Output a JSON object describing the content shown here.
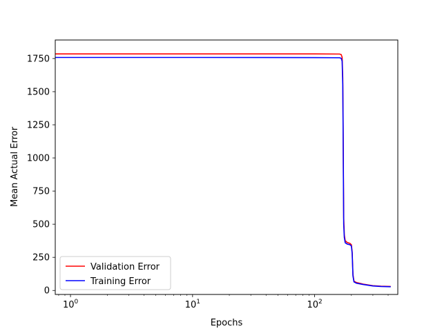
{
  "chart_data": {
    "type": "line",
    "title": "",
    "xlabel": "Epochs",
    "ylabel": "Mean Actual Error",
    "xscale": "log",
    "xlim": [
      0.75,
      480
    ],
    "ylim": [
      -30,
      1890
    ],
    "xticks": [
      {
        "value": 1,
        "base": "10",
        "exp": "0"
      },
      {
        "value": 10,
        "base": "10",
        "exp": "1"
      },
      {
        "value": 100,
        "base": "10",
        "exp": "2"
      }
    ],
    "yticks": [
      {
        "value": 0,
        "label": "0"
      },
      {
        "value": 250,
        "label": "250"
      },
      {
        "value": 500,
        "label": "500"
      },
      {
        "value": 750,
        "label": "750"
      },
      {
        "value": 1000,
        "label": "1000"
      },
      {
        "value": 1250,
        "label": "1250"
      },
      {
        "value": 1500,
        "label": "1500"
      },
      {
        "value": 1750,
        "label": "1750"
      }
    ],
    "grid": false,
    "legend": "lower-left",
    "series": [
      {
        "name": "Validation Error",
        "color": "#ff0000",
        "x": [
          0.75,
          1,
          10,
          100,
          160,
          165,
          168,
          170,
          171,
          172,
          173,
          175,
          178,
          185,
          195,
          200,
          203,
          206,
          210,
          220,
          250,
          300,
          350,
          420
        ],
        "y": [
          1785,
          1785,
          1785,
          1785,
          1784,
          1780,
          1760,
          1600,
          1300,
          900,
          550,
          420,
          375,
          362,
          355,
          345,
          290,
          120,
          70,
          60,
          48,
          36,
          32,
          30
        ]
      },
      {
        "name": "Training Error",
        "color": "#0000ff",
        "x": [
          0.75,
          1,
          10,
          100,
          160,
          165,
          168,
          170,
          171,
          172,
          173,
          175,
          178,
          185,
          195,
          200,
          203,
          206,
          210,
          220,
          250,
          300,
          350,
          420
        ],
        "y": [
          1758,
          1758,
          1758,
          1757,
          1756,
          1752,
          1730,
          1550,
          1250,
          850,
          500,
          400,
          360,
          350,
          345,
          335,
          280,
          110,
          65,
          55,
          45,
          34,
          30,
          28
        ]
      }
    ]
  }
}
